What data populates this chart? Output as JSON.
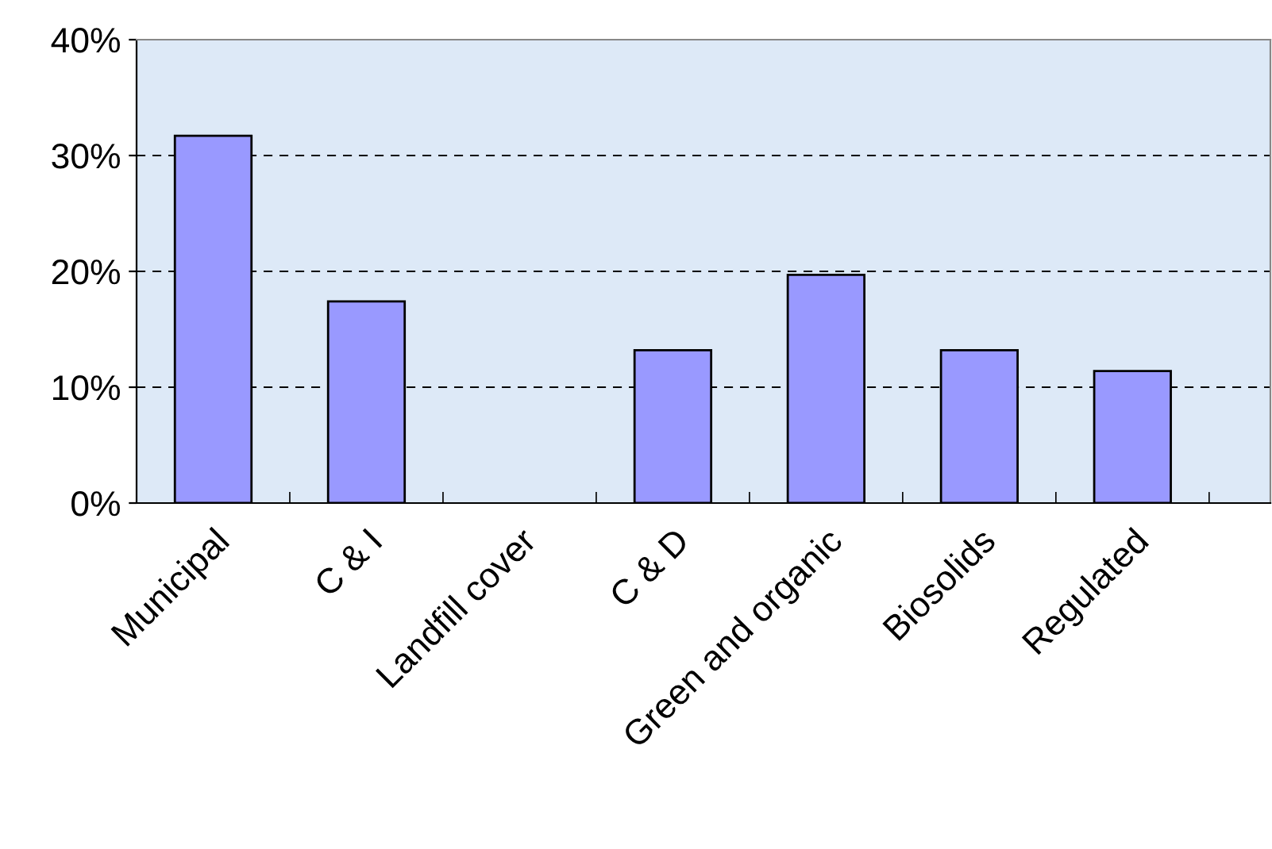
{
  "chart_data": {
    "type": "bar",
    "categories": [
      "Municipal",
      "C & I",
      "Landfill cover",
      "C & D",
      "Green and organic",
      "Biosolids",
      "Regulated"
    ],
    "values": [
      31.7,
      17.4,
      null,
      13.2,
      19.7,
      13.2,
      11.4
    ],
    "color": "#9999ff",
    "ylim": [
      0,
      40
    ],
    "yticks": [
      {
        "value": 0,
        "label": "0%"
      },
      {
        "value": 10,
        "label": "10%"
      },
      {
        "value": 20,
        "label": "20%"
      },
      {
        "value": 30,
        "label": "30%"
      },
      {
        "value": 40,
        "label": "40%"
      }
    ],
    "grid": "y",
    "legend": false
  }
}
